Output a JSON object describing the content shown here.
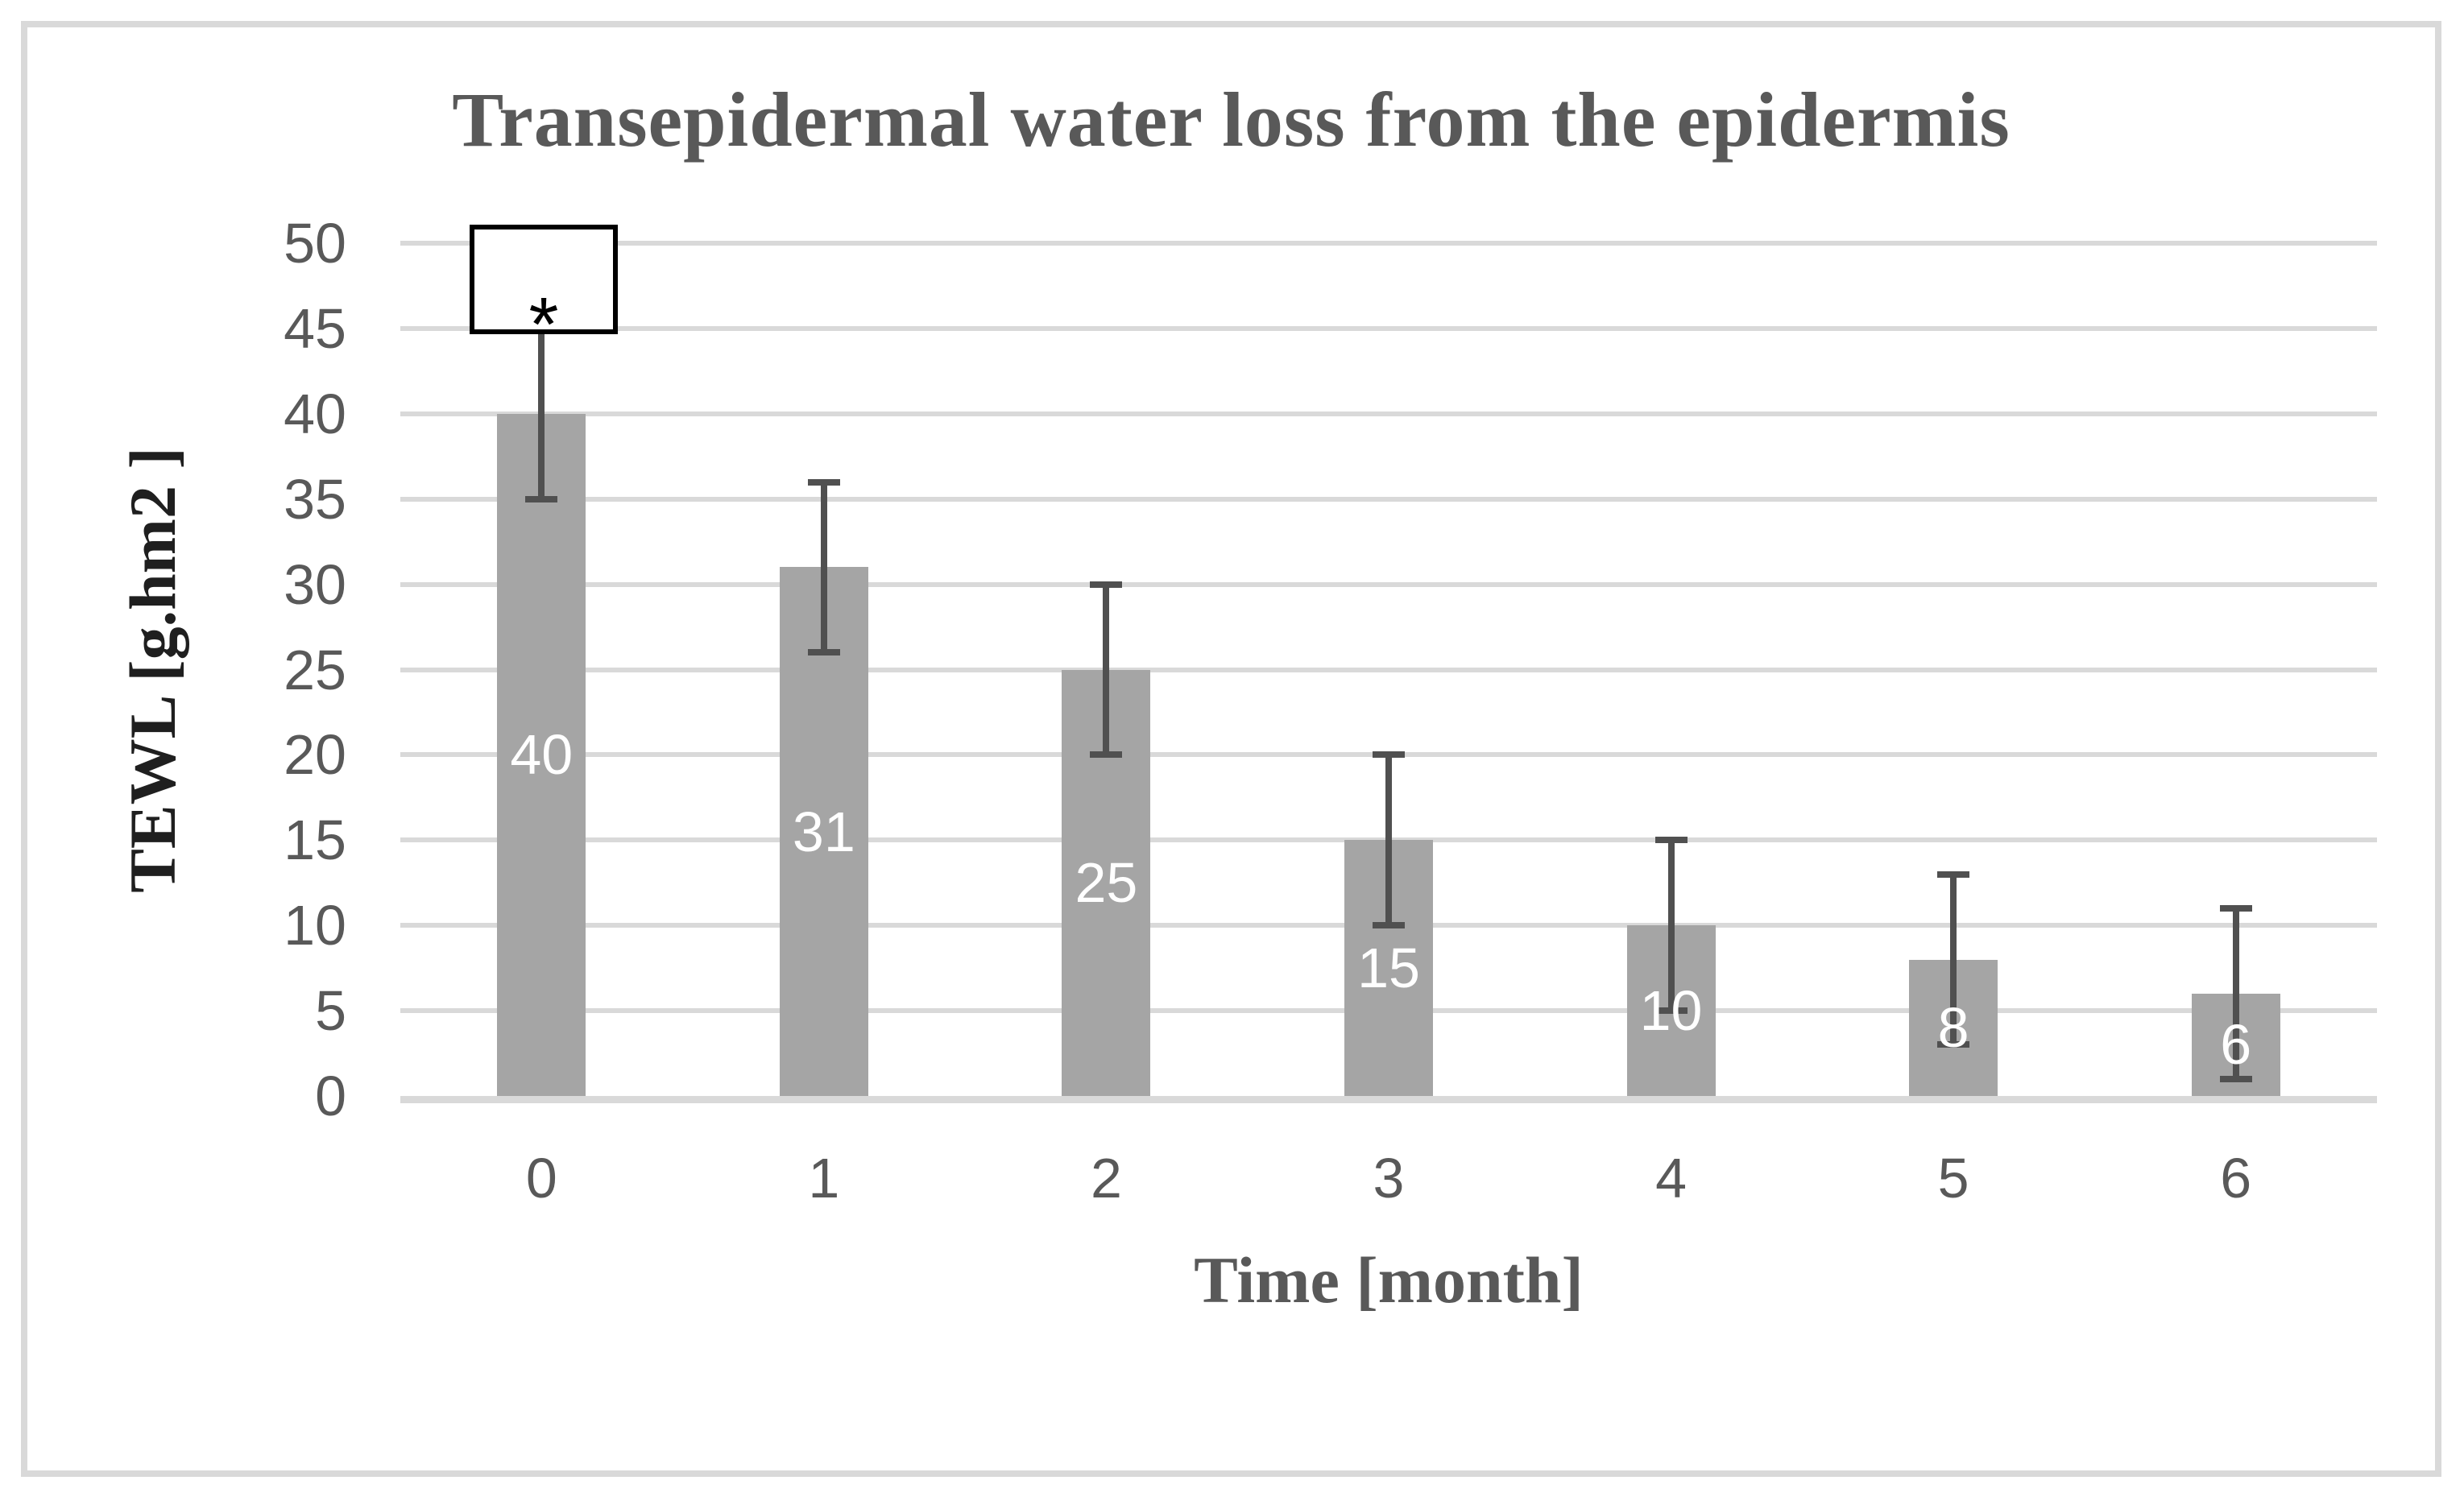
{
  "chart_data": {
    "type": "bar",
    "title": "Transepidermal water loss from the epidermis",
    "xlabel": "Time [month]",
    "ylabel": "TEWL [g.hm2 ]",
    "categories": [
      "0",
      "1",
      "2",
      "3",
      "4",
      "5",
      "6"
    ],
    "values": [
      40,
      31,
      25,
      15,
      10,
      8,
      6
    ],
    "data_labels": [
      "40",
      "31",
      "25",
      "15",
      "10",
      "8",
      "6"
    ],
    "error_bars": {
      "type": "symmetric",
      "plus": 5,
      "minus": 5
    },
    "ylim": [
      0,
      50
    ],
    "yticks": [
      0,
      5,
      10,
      15,
      20,
      25,
      30,
      35,
      40,
      45,
      50
    ],
    "grid": true,
    "legend": false,
    "annotation": {
      "symbol": "*",
      "category_index": 0
    }
  },
  "colors": {
    "bar": "#a5a5a5",
    "error_bar": "#505050",
    "gridline": "#d9d9d9",
    "axis_line": "#d9d9d9",
    "tick_label": "#595959",
    "title": "#595959",
    "x_axis_title": "#595959",
    "y_axis_title": "#1f1f1f",
    "data_label": "#ffffff",
    "frame_border": "#d9d9d9",
    "annotation_border": "#000000"
  }
}
